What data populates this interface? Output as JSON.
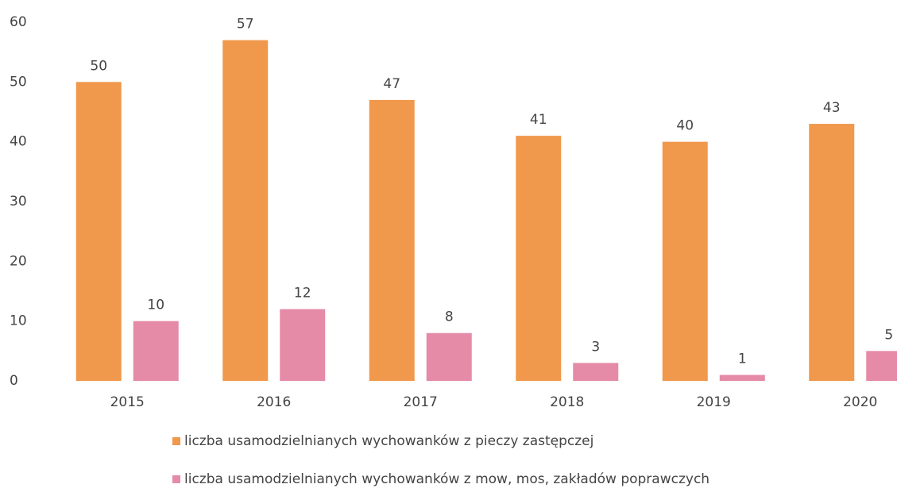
{
  "chart_data": {
    "type": "bar",
    "categories": [
      "2015",
      "2016",
      "2017",
      "2018",
      "2019",
      "2020"
    ],
    "series": [
      {
        "name": "liczba usamodzielnianych wychowanków z pieczy zastępczej",
        "color": "#f0984c",
        "values": [
          50,
          57,
          47,
          41,
          40,
          43
        ]
      },
      {
        "name": "liczba usamodzielnianych wychowanków z mow, mos, zakładów poprawczych",
        "color": "#e58aa7",
        "values": [
          10,
          12,
          8,
          3,
          1,
          5
        ]
      }
    ],
    "ylim": [
      0,
      60
    ],
    "yticks": [
      0,
      10,
      20,
      30,
      40,
      50,
      60
    ],
    "grid": false,
    "legend": "bottom"
  }
}
